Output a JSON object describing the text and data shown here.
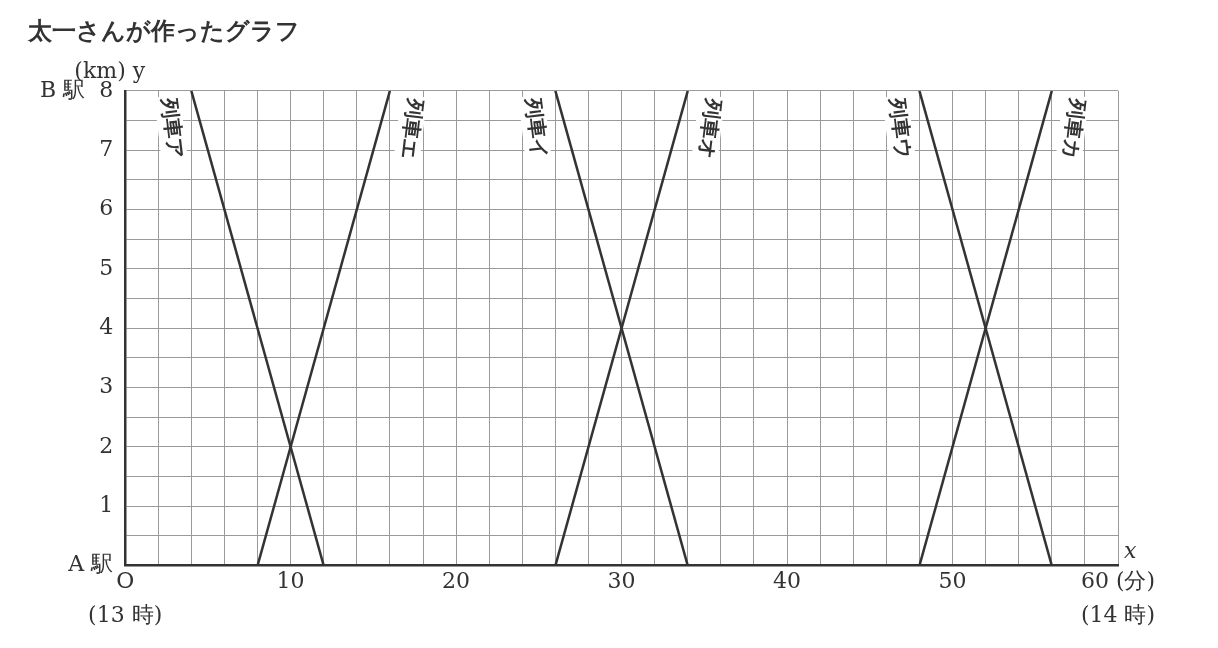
{
  "chart_data": {
    "type": "line",
    "title": "太一さんが作ったグラフ",
    "xlabel": "x",
    "ylabel": "(km) y",
    "xlim": [
      0,
      60
    ],
    "ylim": [
      0,
      8
    ],
    "annotations": [
      "O",
      "(13 時)",
      "(14 時)"
    ],
    "xticks": [
      {
        "value": 0,
        "label": null
      },
      {
        "value": 2,
        "label": null
      },
      {
        "value": 4,
        "label": null
      },
      {
        "value": 6,
        "label": null
      },
      {
        "value": 8,
        "label": null
      },
      10,
      {
        "value": 12,
        "label": null
      },
      {
        "value": 14,
        "label": null
      },
      {
        "value": 16,
        "label": null
      },
      {
        "value": 18,
        "label": null
      },
      20,
      {
        "value": 22,
        "label": null
      },
      {
        "value": 24,
        "label": null
      },
      {
        "value": 26,
        "label": null
      },
      {
        "value": 28,
        "label": null
      },
      30,
      {
        "value": 32,
        "label": null
      },
      {
        "value": 34,
        "label": null
      },
      {
        "value": 36,
        "label": null
      },
      {
        "value": 38,
        "label": null
      },
      40,
      {
        "value": 42,
        "label": null
      },
      {
        "value": 44,
        "label": null
      },
      {
        "value": 46,
        "label": null
      },
      {
        "value": 48,
        "label": null
      },
      50,
      {
        "value": 52,
        "label": null
      },
      {
        "value": 54,
        "label": null
      },
      {
        "value": 56,
        "label": null
      },
      {
        "value": 58,
        "label": null
      },
      {
        "value": 60,
        "label": "60 (分)"
      }
    ],
    "yticks": [
      {
        "value": 0,
        "label": "A 駅"
      },
      {
        "value": 0.5,
        "label": null
      },
      1,
      {
        "value": 1.5,
        "label": null
      },
      2,
      {
        "value": 2.5,
        "label": null
      },
      3,
      {
        "value": 3.5,
        "label": null
      },
      4,
      {
        "value": 4.5,
        "label": null
      },
      5,
      {
        "value": 5.5,
        "label": null
      },
      6,
      {
        "value": 6.5,
        "label": null
      },
      7,
      {
        "value": 7.5,
        "label": null
      },
      {
        "value": 8,
        "label": "B 駅  8"
      }
    ],
    "grid": true,
    "line_style": "solid",
    "series": [
      {
        "name": "列車ア",
        "color": "#333333",
        "x": [
          4,
          12
        ],
        "values": [
          8,
          0
        ]
      },
      {
        "name": "列車エ",
        "color": "#333333",
        "x": [
          8,
          16
        ],
        "values": [
          0,
          8
        ]
      },
      {
        "name": "列車イ",
        "color": "#333333",
        "x": [
          26,
          34
        ],
        "values": [
          8,
          0
        ]
      },
      {
        "name": "列車オ",
        "color": "#333333",
        "x": [
          26,
          34
        ],
        "values": [
          0,
          8
        ]
      },
      {
        "name": "列車ウ",
        "color": "#333333",
        "x": [
          48,
          56
        ],
        "values": [
          8,
          0
        ]
      },
      {
        "name": "列車カ",
        "color": "#333333",
        "x": [
          48,
          56
        ],
        "values": [
          0,
          8
        ]
      }
    ]
  }
}
